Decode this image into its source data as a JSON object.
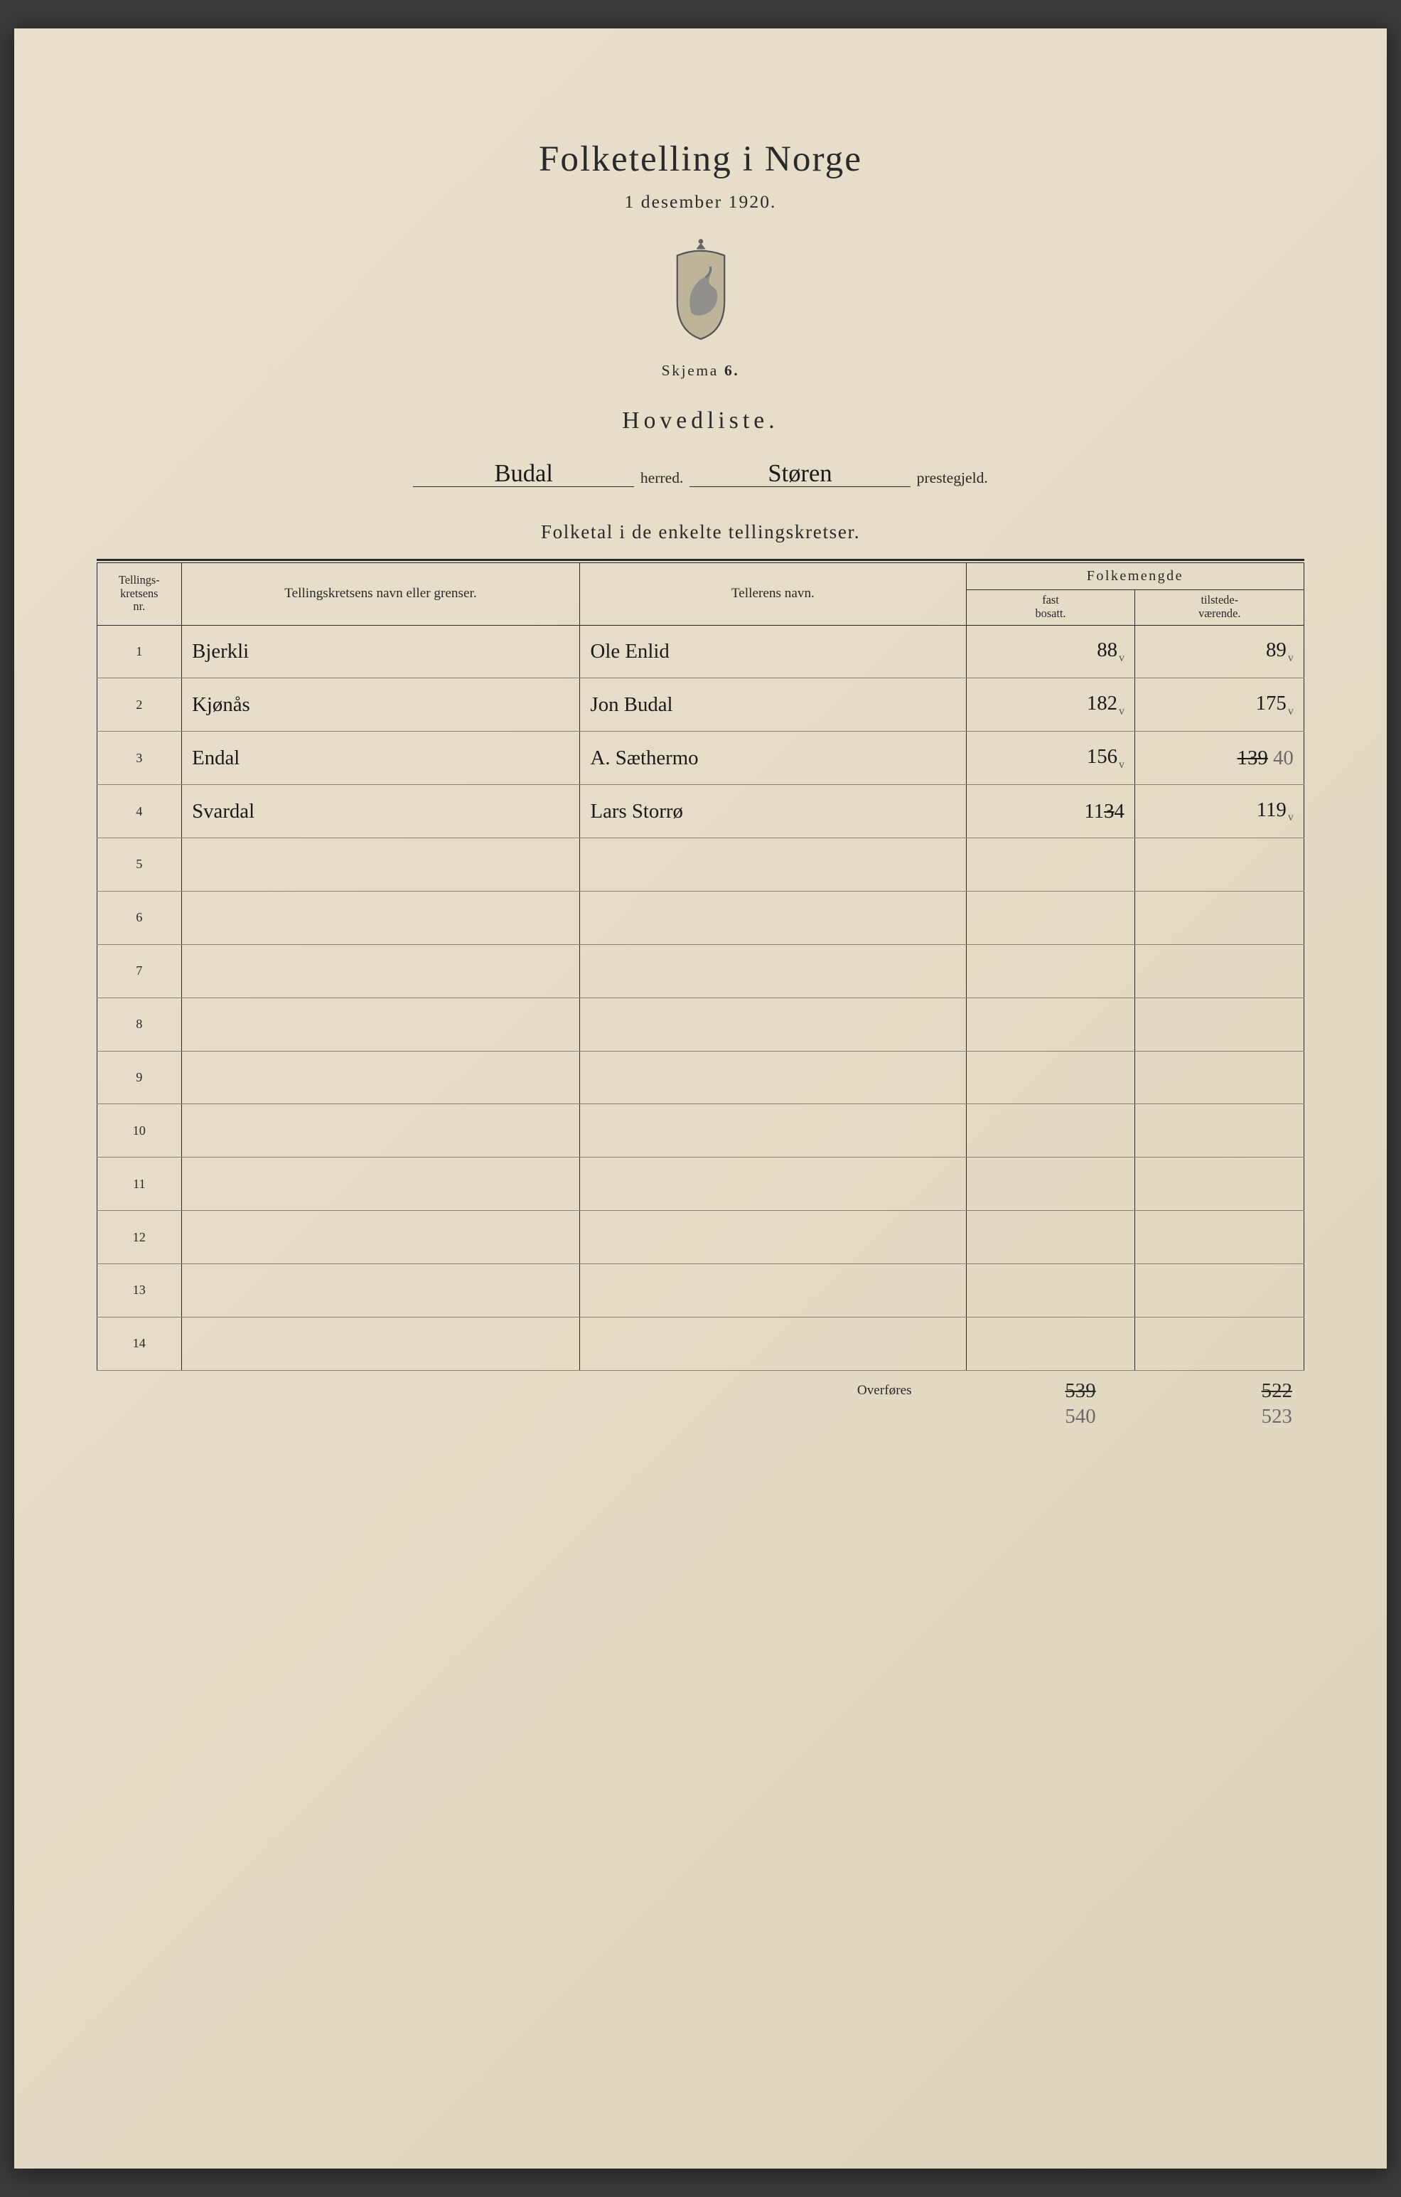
{
  "colors": {
    "paper_bg": "#e4dcc6",
    "ink": "#2a2a2a",
    "hand_ink": "#1a1a1a",
    "pencil": "#6b6b6b",
    "row_rule": "#8a836f"
  },
  "header": {
    "title": "Folketelling i Norge",
    "subtitle": "1 desember 1920.",
    "skjema_label": "Skjema",
    "skjema_no": "6.",
    "hovedliste": "Hovedliste."
  },
  "locality": {
    "herred_value": "Budal",
    "herred_label": "herred.",
    "prestegjeld_value": "Støren",
    "prestegjeld_label": "prestegjeld."
  },
  "section_title": "Folketal i de enkelte tellingskretser.",
  "columns": {
    "nr": "Tellings-\nkretsens\nnr.",
    "name": "Tellingskretsens navn eller grenser.",
    "teller": "Tellerens navn.",
    "folk_group": "Folkemengde",
    "fast": "fast\nbosatt.",
    "tilstede": "tilstede-\nværende."
  },
  "rows": [
    {
      "nr": "1",
      "name": "Bjerkli",
      "teller": "Ole Enlid",
      "fast": "88",
      "fast_tick": true,
      "tilstede": "89",
      "tilstede_tick": true
    },
    {
      "nr": "2",
      "name": "Kjønås",
      "teller": "Jon Budal",
      "fast": "182",
      "fast_tick": true,
      "tilstede": "175",
      "tilstede_tick": true
    },
    {
      "nr": "3",
      "name": "Endal",
      "teller": "A. Sæthermo",
      "fast": "156",
      "fast_tick": true,
      "tilstede_strike": "139",
      "tilstede_corr": "40"
    },
    {
      "nr": "4",
      "name": "Svardal",
      "teller": "Lars Storrø",
      "fast": "114",
      "fast_strike_partial": true,
      "tilstede": "119",
      "tilstede_tick": true
    },
    {
      "nr": "5"
    },
    {
      "nr": "6"
    },
    {
      "nr": "7"
    },
    {
      "nr": "8"
    },
    {
      "nr": "9"
    },
    {
      "nr": "10"
    },
    {
      "nr": "11"
    },
    {
      "nr": "12"
    },
    {
      "nr": "13"
    },
    {
      "nr": "14"
    }
  ],
  "footer": {
    "label": "Overføres",
    "fast_strike": "539",
    "fast_corr": "540",
    "tilstede_strike": "522",
    "tilstede_corr": "523"
  }
}
